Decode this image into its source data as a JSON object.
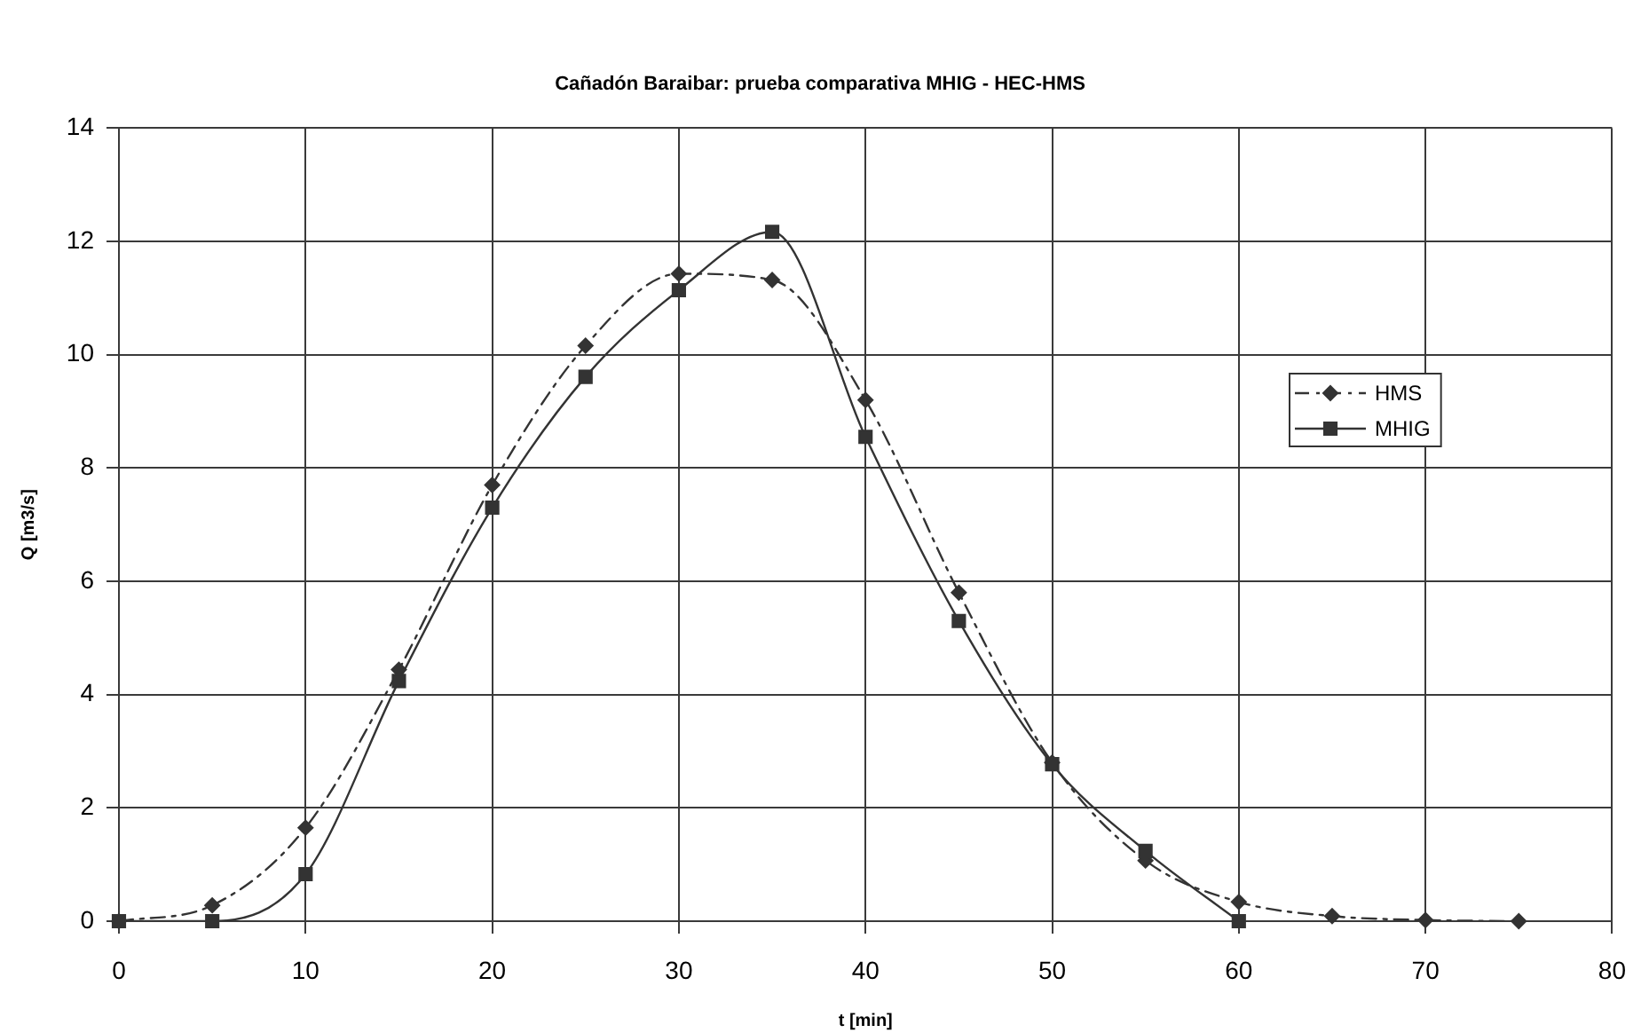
{
  "chart_data": {
    "type": "line",
    "title": "Cañadón Baraibar: prueba comparativa MHIG - HEC-HMS",
    "xlabel": "t [min]",
    "ylabel": "Q [m3/s]",
    "x": [
      0,
      5,
      10,
      15,
      20,
      25,
      30,
      35,
      40,
      45,
      50,
      55,
      60,
      65,
      70,
      75
    ],
    "series": [
      {
        "name": "HMS",
        "color": "#333333",
        "marker": "diamond",
        "line_style": "dashed",
        "values": [
          0,
          0.28,
          1.65,
          4.44,
          7.7,
          10.16,
          11.43,
          11.32,
          9.2,
          5.8,
          2.8,
          1.07,
          0.34,
          0.09,
          0.02,
          0
        ]
      },
      {
        "name": "MHIG",
        "color": "#333333",
        "marker": "square",
        "line_style": "solid",
        "x": [
          0,
          5,
          10,
          15,
          20,
          25,
          30,
          35,
          40,
          45,
          50,
          55,
          60
        ],
        "values": [
          0,
          0,
          0.83,
          4.24,
          7.3,
          9.61,
          11.14,
          12.17,
          8.55,
          5.3,
          2.77,
          1.24,
          0
        ]
      }
    ],
    "xlim": [
      0,
      80
    ],
    "xticks": [
      0,
      10,
      20,
      30,
      40,
      50,
      60,
      70,
      80
    ],
    "ylim": [
      0,
      14
    ],
    "yticks": [
      0,
      2,
      4,
      6,
      8,
      10,
      12,
      14
    ],
    "grid": true,
    "legend": "right"
  }
}
